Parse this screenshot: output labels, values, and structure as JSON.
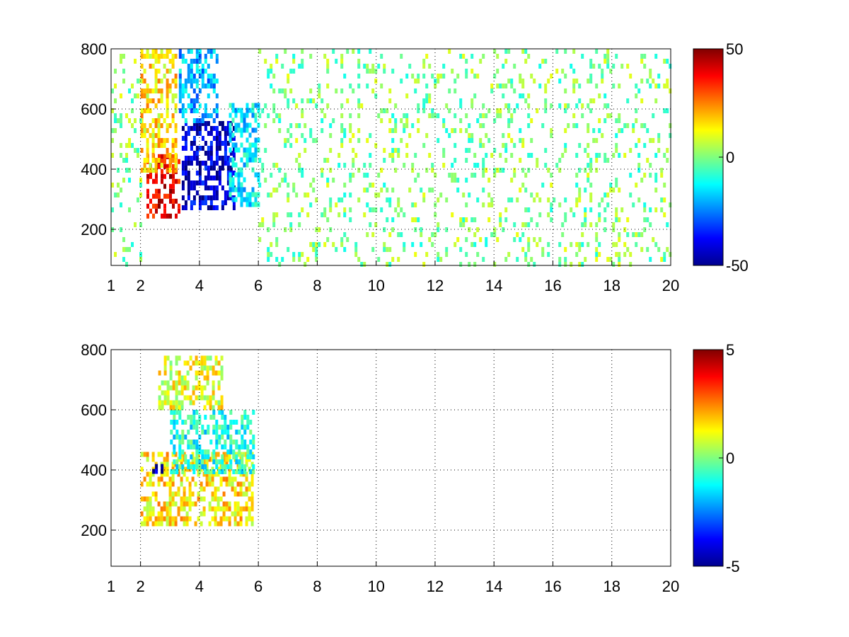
{
  "chart_data": [
    {
      "type": "heatmap",
      "title": "",
      "xlabel": "",
      "ylabel": "",
      "xlim": [
        1,
        20
      ],
      "ylim": [
        80,
        800
      ],
      "x_scale": "linear",
      "grid": true,
      "grid_style": "dotted",
      "x_ticks": [
        1,
        2,
        4,
        6,
        8,
        10,
        12,
        14,
        16,
        18,
        20
      ],
      "x_tick_labels": [
        "1",
        "2",
        "4",
        "6",
        "8",
        "10",
        "12",
        "14",
        "16",
        "18",
        "20"
      ],
      "y_ticks": [
        200,
        400,
        600,
        800
      ],
      "y_tick_labels": [
        "200",
        "400",
        "600",
        "800"
      ],
      "colormap": "jet",
      "clim": [
        -50,
        50
      ],
      "colorbar_ticks": [
        -50,
        0,
        50
      ],
      "colorbar_tick_labels": [
        "-50",
        "0",
        "50"
      ],
      "regions": [
        {
          "x_range": [
            2.2,
            3.3
          ],
          "y_range": [
            250,
            450
          ],
          "value": 40
        },
        {
          "x_range": [
            2.0,
            3.2
          ],
          "y_range": [
            400,
            800
          ],
          "value": 15
        },
        {
          "x_range": [
            3.4,
            5.2
          ],
          "y_range": [
            270,
            560
          ],
          "value": -42
        },
        {
          "x_range": [
            3.3,
            4.6
          ],
          "y_range": [
            560,
            800
          ],
          "value": -20
        },
        {
          "x_range": [
            5.0,
            6.0
          ],
          "y_range": [
            280,
            620
          ],
          "value": -15
        },
        {
          "x_range": [
            1.0,
            2.0
          ],
          "y_range": [
            80,
            800
          ],
          "value": 0
        },
        {
          "x_range": [
            6.0,
            20.0
          ],
          "y_range": [
            80,
            800
          ],
          "value": 0
        }
      ]
    },
    {
      "type": "heatmap",
      "title": "",
      "xlabel": "",
      "ylabel": "",
      "xlim": [
        1,
        20
      ],
      "ylim": [
        80,
        800
      ],
      "x_scale": "linear",
      "grid": true,
      "grid_style": "dotted",
      "x_ticks": [
        1,
        2,
        4,
        6,
        8,
        10,
        12,
        14,
        16,
        18,
        20
      ],
      "x_tick_labels": [
        "1",
        "2",
        "4",
        "6",
        "8",
        "10",
        "12",
        "14",
        "16",
        "18",
        "20"
      ],
      "y_ticks": [
        200,
        400,
        600,
        800
      ],
      "y_tick_labels": [
        "200",
        "400",
        "600",
        "800"
      ],
      "colormap": "jet",
      "clim": [
        -5,
        5
      ],
      "colorbar_ticks": [
        -5,
        0,
        5
      ],
      "colorbar_tick_labels": [
        "-5",
        "0",
        "5"
      ],
      "regions": [
        {
          "x_range": [
            2.0,
            5.8
          ],
          "y_range": [
            220,
            460
          ],
          "value": 1.5
        },
        {
          "x_range": [
            3.0,
            5.8
          ],
          "y_range": [
            400,
            600
          ],
          "value": -1
        },
        {
          "x_range": [
            2.6,
            4.8
          ],
          "y_range": [
            600,
            780
          ],
          "value": 1
        },
        {
          "x_range": [
            2.3,
            2.8
          ],
          "y_range": [
            390,
            420
          ],
          "value": -4.5
        }
      ]
    }
  ]
}
